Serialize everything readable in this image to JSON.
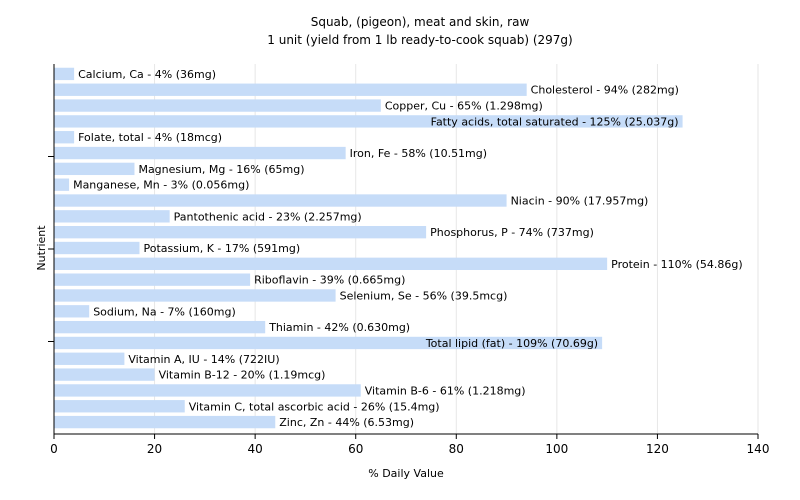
{
  "chart_data": {
    "type": "bar",
    "orientation": "horizontal",
    "title": "Squab, (pigeon), meat and skin, raw",
    "subtitle": "1 unit (yield from 1 lb ready-to-cook squab) (297g)",
    "xlabel": "% Daily Value",
    "ylabel": "Nutrient",
    "xlim": [
      0,
      140
    ],
    "xticks": [
      "0",
      "20",
      "40",
      "60",
      "80",
      "100",
      "120",
      "140"
    ],
    "grid": true,
    "bar_color": "#c6dcf8",
    "categories": [
      "Calcium, Ca",
      "Cholesterol",
      "Copper, Cu",
      "Fatty acids, total saturated",
      "Folate, total",
      "Iron, Fe",
      "Magnesium, Mg",
      "Manganese, Mn",
      "Niacin",
      "Pantothenic acid",
      "Phosphorus, P",
      "Potassium, K",
      "Protein",
      "Riboflavin",
      "Selenium, Se",
      "Sodium, Na",
      "Thiamin",
      "Total lipid (fat)",
      "Vitamin A, IU",
      "Vitamin B-12",
      "Vitamin B-6",
      "Vitamin C, total ascorbic acid",
      "Zinc, Zn"
    ],
    "values": [
      4,
      94,
      65,
      125,
      4,
      58,
      16,
      3,
      90,
      23,
      74,
      17,
      110,
      39,
      56,
      7,
      42,
      109,
      14,
      20,
      61,
      26,
      44
    ],
    "labels": [
      "Calcium, Ca - 4% (36mg)",
      "Cholesterol - 94% (282mg)",
      "Copper, Cu - 65% (1.298mg)",
      "Fatty acids, total saturated - 125% (25.037g)",
      "Folate, total - 4% (18mcg)",
      "Iron, Fe - 58% (10.51mg)",
      "Magnesium, Mg - 16% (65mg)",
      "Manganese, Mn - 3% (0.056mg)",
      "Niacin - 90% (17.957mg)",
      "Pantothenic acid - 23% (2.257mg)",
      "Phosphorus, P - 74% (737mg)",
      "Potassium, K - 17% (591mg)",
      "Protein - 110% (54.86g)",
      "Riboflavin - 39% (0.665mg)",
      "Selenium, Se - 56% (39.5mcg)",
      "Sodium, Na - 7% (160mg)",
      "Thiamin - 42% (0.630mg)",
      "Total lipid (fat) - 109% (70.69g)",
      "Vitamin A, IU - 14% (722IU)",
      "Vitamin B-12 - 20% (1.19mcg)",
      "Vitamin B-6 - 61% (1.218mg)",
      "Vitamin C, total ascorbic acid - 26% (15.4mg)",
      "Zinc, Zn - 44% (6.53mg)"
    ]
  }
}
